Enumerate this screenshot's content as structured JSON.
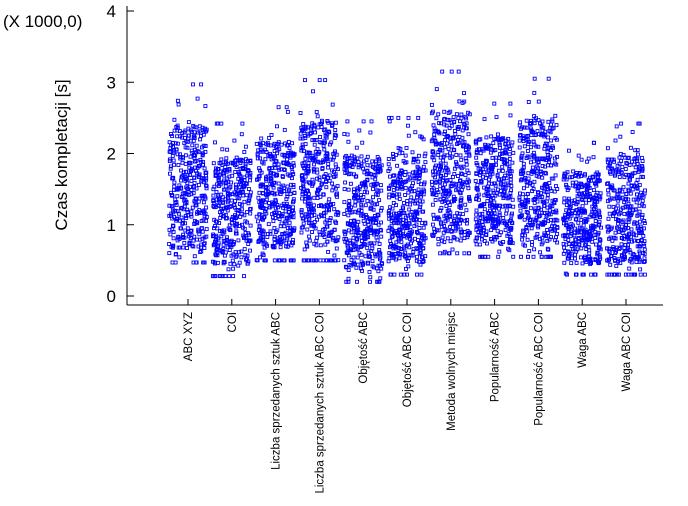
{
  "chart_data": {
    "type": "scatter",
    "title": "",
    "scale_note": "(X 1000,0)",
    "ylabel": "Czas kompletacji [s]",
    "xlabel": "",
    "ylim": [
      0,
      4
    ],
    "yticks": [
      "0",
      "1",
      "2",
      "3",
      "4"
    ],
    "marker_color": "#0000ff",
    "categories": [
      "ABC XYZ",
      "COI",
      "Liczba sprzedanych sztuk ABC",
      "Liczba sprzedanych sztuk ABC COI",
      "Objętość ABC",
      "Objętość ABC COI",
      "Metoda wolnych miejsc",
      "Popularność ABC",
      "Popularność ABC COI",
      "Waga ABC",
      "Waga ABC COI"
    ],
    "series": [
      {
        "name": "ABC XYZ",
        "min": 0.47,
        "max": 2.97,
        "median": 1.45
      },
      {
        "name": "COI",
        "min": 0.28,
        "max": 2.42,
        "median": 1.1
      },
      {
        "name": "Liczba sprzedanych sztuk ABC",
        "min": 0.5,
        "max": 2.65,
        "median": 1.3
      },
      {
        "name": "Liczba sprzedanych sztuk ABC COI",
        "min": 0.5,
        "max": 3.03,
        "median": 1.35
      },
      {
        "name": "Objętość ABC",
        "min": 0.2,
        "max": 2.45,
        "median": 1.1
      },
      {
        "name": "Objętość ABC COI",
        "min": 0.3,
        "max": 2.5,
        "median": 1.15
      },
      {
        "name": "Metoda wolnych miejsc",
        "min": 0.6,
        "max": 3.15,
        "median": 1.55
      },
      {
        "name": "Popularność ABC",
        "min": 0.55,
        "max": 2.7,
        "median": 1.45
      },
      {
        "name": "Popularność ABC COI",
        "min": 0.55,
        "max": 3.05,
        "median": 1.5
      },
      {
        "name": "Waga ABC",
        "min": 0.3,
        "max": 2.15,
        "median": 1.05
      },
      {
        "name": "Waga ABC COI",
        "min": 0.3,
        "max": 2.42,
        "median": 1.05
      }
    ]
  }
}
